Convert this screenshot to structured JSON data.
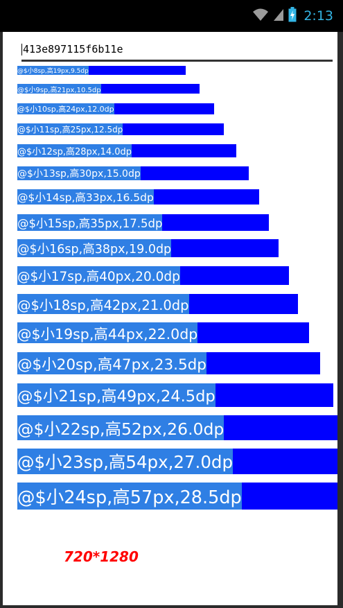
{
  "status_bar": {
    "time": "2:13",
    "icons": [
      "wifi-icon",
      "signal-icon",
      "battery-charging-icon"
    ],
    "accent_color": "#33b5e5"
  },
  "edit_field": {
    "value": "413e897115f6b11e"
  },
  "rows": [
    {
      "label": "@$小8sp,高19px,9.5dp"
    },
    {
      "label": "@$小9sp,高21px,10.5dp"
    },
    {
      "label": "@$小10sp,高24px,12.0dp"
    },
    {
      "label": "@$小11sp,高25px,12.5dp"
    },
    {
      "label": "@$小12sp,高28px,14.0dp"
    },
    {
      "label": "@$小13sp,高30px,15.0dp"
    },
    {
      "label": "@$小14sp,高33px,16.5dp"
    },
    {
      "label": "@$小15sp,高35px,17.5dp"
    },
    {
      "label": "@$小16sp,高38px,19.0dp"
    },
    {
      "label": "@$小17sp,高40px,20.0dp"
    },
    {
      "label": "@$小18sp,高42px,21.0dp"
    },
    {
      "label": "@$小19sp,高44px,22.0dp"
    },
    {
      "label": "@$小20sp,高47px,23.5dp"
    },
    {
      "label": "@$小21sp,高49px,24.5dp"
    },
    {
      "label": "@$小22sp,高52px,26.0dp"
    },
    {
      "label": "@$小23sp,高54px,27.0dp"
    },
    {
      "label": "@$小24sp,高57px,28.5dp"
    }
  ],
  "colors": {
    "bar": "#0000ff",
    "label_bg": "#2f7fe4",
    "resolution_text": "#ff0000"
  },
  "resolution_label": "720*1280"
}
